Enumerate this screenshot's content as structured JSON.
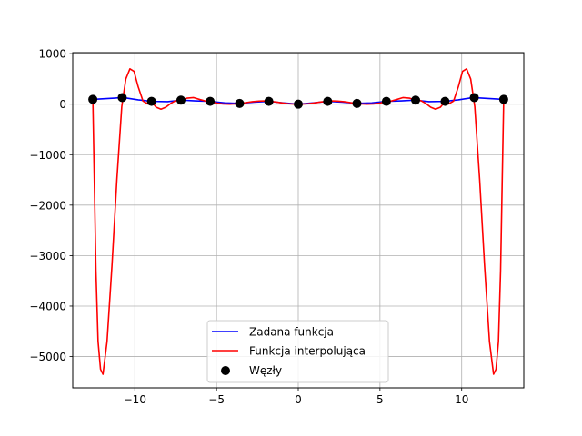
{
  "chart_data": {
    "type": "line",
    "xlim": [
      -13.8,
      13.8
    ],
    "ylim": [
      -5620,
      1020
    ],
    "grid": true,
    "legend_position": "lower-center",
    "xticks": [
      -10,
      -5,
      0,
      5,
      10
    ],
    "xtick_labels": [
      "−10",
      "−5",
      "0",
      "5",
      "10"
    ],
    "yticks": [
      1000,
      0,
      -1000,
      -2000,
      -3000,
      -4000,
      -5000
    ],
    "ytick_labels": [
      "1000",
      "0",
      "−1000",
      "−2000",
      "−3000",
      "−4000",
      "−5000"
    ],
    "series": [
      {
        "name": "Zadana funkcja",
        "color": "#0000ff",
        "x": [
          -12.57,
          -11.5,
          -10.7,
          -9.8,
          -8.9,
          -8.0,
          -7.16,
          -6.3,
          -5.37,
          -4.5,
          -3.58,
          -2.7,
          -1.79,
          -0.9,
          0,
          0.9,
          1.79,
          2.7,
          3.58,
          4.5,
          5.37,
          6.3,
          7.16,
          8.0,
          8.9,
          9.8,
          10.7,
          11.5,
          12.57
        ],
        "y": [
          95,
          115,
          130,
          85,
          55,
          50,
          80,
          65,
          55,
          25,
          15,
          40,
          55,
          25,
          0,
          25,
          55,
          40,
          15,
          25,
          55,
          65,
          80,
          50,
          55,
          85,
          130,
          115,
          95
        ]
      },
      {
        "name": "Funkcja interpolująca",
        "color": "#ff0000",
        "x": [
          -12.57,
          -12.48,
          -12.38,
          -12.25,
          -12.1,
          -11.95,
          -11.7,
          -11.4,
          -11.1,
          -10.8,
          -10.55,
          -10.3,
          -10.05,
          -9.8,
          -9.5,
          -9.2,
          -8.95,
          -8.7,
          -8.4,
          -8.1,
          -7.8,
          -7.5,
          -7.16,
          -6.8,
          -6.4,
          -6.0,
          -5.6,
          -5.37,
          -5.0,
          -4.6,
          -4.2,
          -3.9,
          -3.58,
          -3.2,
          -2.8,
          -2.4,
          -2.0,
          -1.79,
          -1.4,
          -1.0,
          -0.6,
          -0.2,
          0,
          0.2,
          0.6,
          1.0,
          1.4,
          1.79,
          2.0,
          2.4,
          2.8,
          3.2,
          3.58,
          3.9,
          4.2,
          4.6,
          5.0,
          5.37,
          5.6,
          6.0,
          6.4,
          6.8,
          7.16,
          7.5,
          7.8,
          8.1,
          8.4,
          8.7,
          8.95,
          9.2,
          9.5,
          9.8,
          10.05,
          10.3,
          10.55,
          10.8,
          11.1,
          11.4,
          11.7,
          11.95,
          12.1,
          12.25,
          12.38,
          12.48,
          12.57
        ],
        "y": [
          95,
          -1500,
          -3300,
          -4700,
          -5250,
          -5350,
          -4700,
          -3200,
          -1500,
          -50,
          500,
          700,
          650,
          350,
          60,
          5,
          40,
          -60,
          -100,
          -60,
          15,
          70,
          80,
          120,
          130,
          90,
          55,
          55,
          20,
          5,
          0,
          5,
          15,
          30,
          50,
          60,
          65,
          55,
          45,
          25,
          8,
          0,
          0,
          0,
          8,
          25,
          45,
          55,
          65,
          60,
          50,
          30,
          15,
          5,
          0,
          5,
          20,
          55,
          55,
          90,
          130,
          120,
          80,
          70,
          15,
          -60,
          -100,
          -60,
          40,
          5,
          60,
          350,
          650,
          700,
          500,
          -50,
          -1500,
          -3200,
          -4700,
          -5350,
          -5250,
          -4700,
          -3300,
          -1500,
          95
        ]
      },
      {
        "name": "Węzły",
        "type": "scatter",
        "color": "#000000",
        "x": [
          -12.57,
          -10.77,
          -8.98,
          -7.18,
          -5.39,
          -3.59,
          -1.8,
          0,
          1.8,
          3.59,
          5.39,
          7.18,
          8.98,
          10.77,
          12.57
        ],
        "y": [
          95,
          130,
          55,
          80,
          55,
          15,
          55,
          0,
          55,
          15,
          55,
          80,
          55,
          130,
          95
        ]
      }
    ]
  }
}
